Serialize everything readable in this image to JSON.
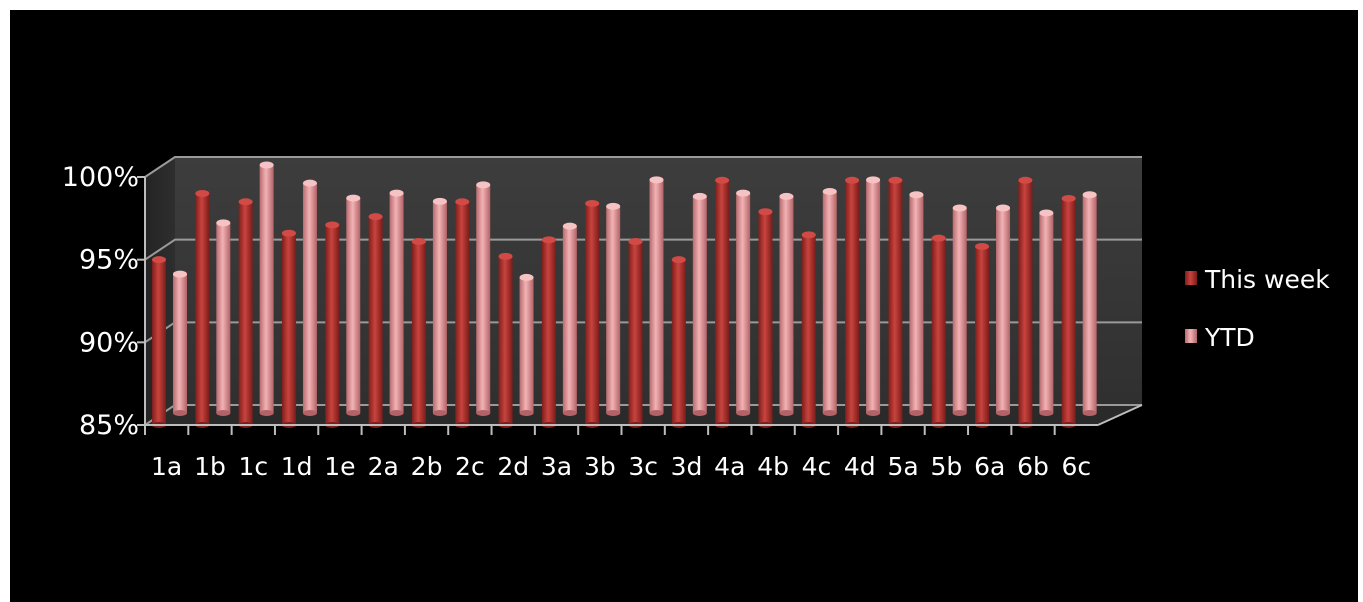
{
  "chart_data": {
    "type": "bar",
    "categories": [
      "1a",
      "1b",
      "1c",
      "1d",
      "1e",
      "2a",
      "2b",
      "2c",
      "2d",
      "3a",
      "3b",
      "3c",
      "3d",
      "4a",
      "4b",
      "4c",
      "4d",
      "5a",
      "5b",
      "6a",
      "6b",
      "6c"
    ],
    "series": [
      {
        "name": "This week",
        "color": "#b8322e",
        "values": [
          95.0,
          99.0,
          98.5,
          96.6,
          97.1,
          97.6,
          96.1,
          98.5,
          95.2,
          96.2,
          98.4,
          96.1,
          95.0,
          99.8,
          97.9,
          96.5,
          99.8,
          99.8,
          96.3,
          95.8,
          99.8,
          98.7
        ]
      },
      {
        "name": "YTD",
        "color": "#e9999c",
        "values": [
          93.4,
          96.5,
          100.0,
          98.9,
          98.0,
          98.3,
          97.8,
          98.8,
          93.2,
          96.3,
          97.5,
          99.1,
          98.1,
          98.3,
          98.1,
          98.4,
          99.1,
          98.2,
          97.4,
          97.4,
          97.1,
          98.2
        ]
      }
    ],
    "y_ticks": [
      "85%",
      "90%",
      "95%",
      "100%"
    ],
    "ylim": [
      85,
      100
    ],
    "grid": true,
    "legend_position": "right"
  }
}
